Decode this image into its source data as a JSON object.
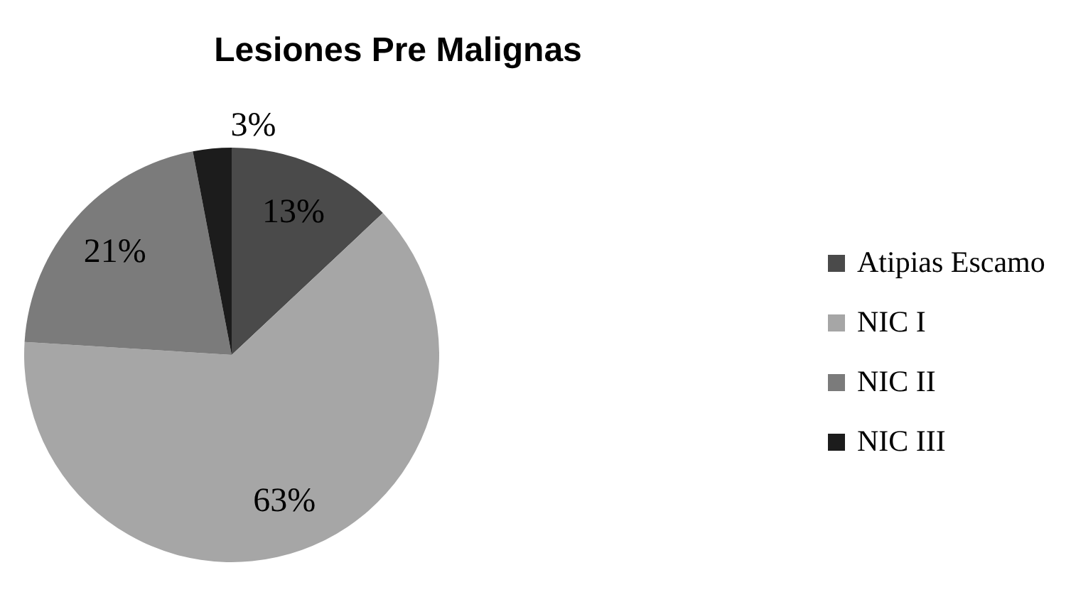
{
  "chart_data": {
    "type": "pie",
    "title": "Lesiones Pre Malignas",
    "categories": [
      "Atipias Escamo",
      "NIC I",
      "NIC  II",
      "NIC III"
    ],
    "values": [
      13,
      63,
      21,
      3
    ],
    "colors": [
      "#4a4a4a",
      "#a6a6a6",
      "#7b7b7b",
      "#1c1c1c"
    ],
    "value_labels": [
      "13%",
      "63%",
      "21%",
      "3%"
    ],
    "legend": "right"
  }
}
